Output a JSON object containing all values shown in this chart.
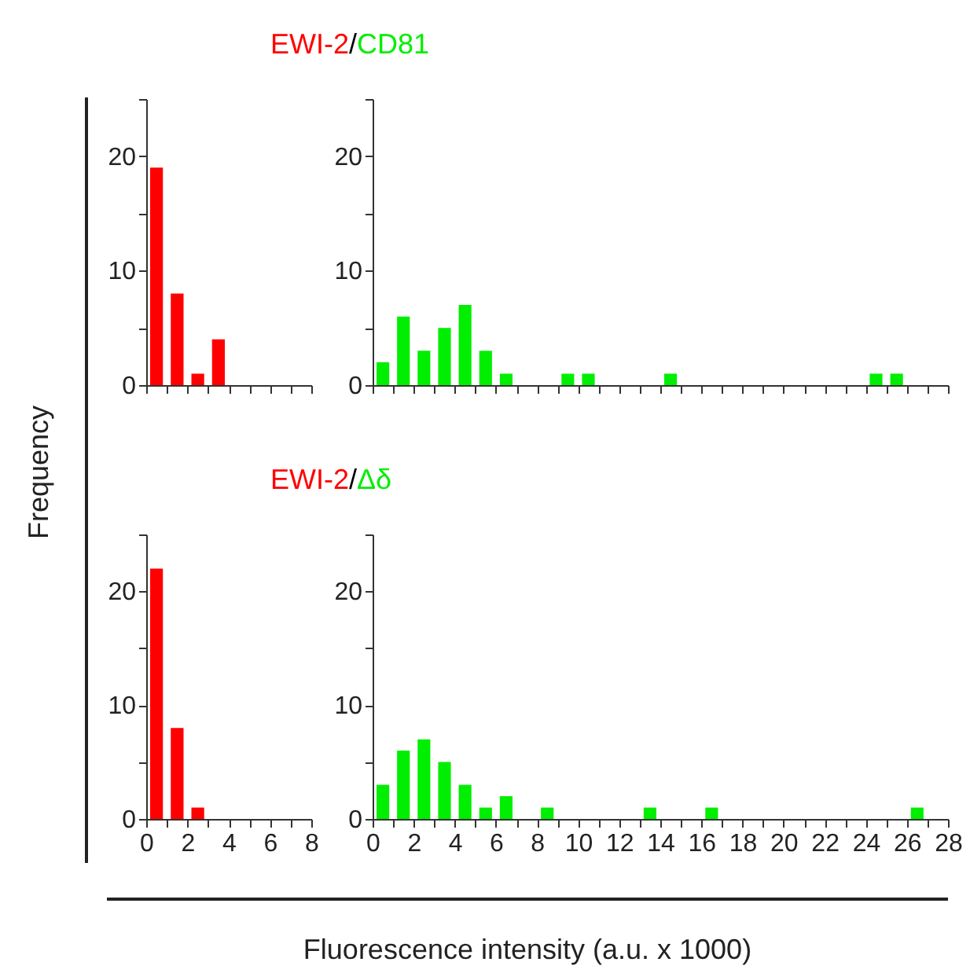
{
  "chart_data": [
    {
      "type": "histogram",
      "title": "EWI-2/CD81",
      "ylabel": "Frequency",
      "color": "#ff0000",
      "bins": [
        0,
        1,
        2,
        3,
        4,
        5,
        6,
        7,
        8
      ],
      "values": [
        19,
        8,
        1,
        4,
        0,
        0,
        0,
        0
      ],
      "xlim": [
        0,
        8
      ],
      "ylim": [
        0,
        25
      ],
      "xticks": [
        0,
        1,
        2,
        3,
        4,
        5,
        6,
        7,
        8
      ],
      "yticks": [
        0,
        {
          "value": 5,
          "label": null
        },
        10,
        {
          "value": 15,
          "label": null
        },
        20,
        {
          "value": 25,
          "label": null
        }
      ],
      "tick_labels": "y"
    },
    {
      "type": "histogram",
      "color": "#00ee00",
      "bins": [
        0,
        1,
        2,
        3,
        4,
        5,
        6,
        7,
        8,
        9,
        10,
        11,
        12,
        13,
        14,
        15,
        16,
        17,
        18,
        19,
        20,
        21,
        22,
        23,
        24,
        25,
        26,
        27,
        28
      ],
      "values": [
        2,
        6,
        3,
        5,
        7,
        3,
        1,
        0,
        0,
        1,
        1,
        0,
        0,
        0,
        1,
        0,
        0,
        0,
        0,
        0,
        0,
        0,
        0,
        0,
        1,
        1,
        0,
        0
      ],
      "xlim": [
        0,
        28
      ],
      "ylim": [
        0,
        25
      ],
      "xticks": [
        0,
        1,
        2,
        3,
        4,
        5,
        6,
        7,
        8,
        9,
        10,
        11,
        12,
        13,
        14,
        15,
        16,
        17,
        18,
        19,
        20,
        21,
        22,
        23,
        24,
        25,
        26,
        27,
        28
      ],
      "yticks": [
        0,
        {
          "value": 5,
          "label": null
        },
        10,
        {
          "value": 15,
          "label": null
        },
        20,
        {
          "value": 25,
          "label": null
        }
      ],
      "tick_labels": "y"
    },
    {
      "type": "histogram",
      "title": "EWI-2/Δδ",
      "color": "#ff0000",
      "bins": [
        0,
        1,
        2,
        3,
        4,
        5,
        6,
        7,
        8
      ],
      "values": [
        22,
        8,
        1,
        0,
        0,
        0,
        0,
        0
      ],
      "xlim": [
        0,
        8
      ],
      "ylim": [
        0,
        25
      ],
      "xticks": [
        0,
        {
          "value": 1,
          "label": null
        },
        2,
        {
          "value": 3,
          "label": null
        },
        4,
        {
          "value": 5,
          "label": null
        },
        6,
        {
          "value": 7,
          "label": null
        },
        8
      ],
      "yticks": [
        0,
        {
          "value": 5,
          "label": null
        },
        10,
        {
          "value": 15,
          "label": null
        },
        20,
        {
          "value": 25,
          "label": null
        }
      ]
    },
    {
      "type": "histogram",
      "xlabel": "Fluorescence intensity (a.u. x 1000)",
      "color": "#00ee00",
      "bins": [
        0,
        1,
        2,
        3,
        4,
        5,
        6,
        7,
        8,
        9,
        10,
        11,
        12,
        13,
        14,
        15,
        16,
        17,
        18,
        19,
        20,
        21,
        22,
        23,
        24,
        25,
        26,
        27,
        28
      ],
      "values": [
        3,
        6,
        7,
        5,
        3,
        1,
        2,
        0,
        1,
        0,
        0,
        0,
        0,
        1,
        0,
        0,
        1,
        0,
        0,
        0,
        0,
        0,
        0,
        0,
        0,
        0,
        1,
        0
      ],
      "xlim": [
        0,
        28
      ],
      "ylim": [
        0,
        25
      ],
      "yticks": [
        0,
        {
          "value": 5,
          "label": null
        },
        10,
        {
          "value": 15,
          "label": null
        },
        20,
        {
          "value": 25,
          "label": null
        }
      ],
      "xticks": [
        0,
        {
          "value": 1,
          "label": null
        },
        2,
        {
          "value": 3,
          "label": null
        },
        4,
        {
          "value": 5,
          "label": null
        },
        6,
        {
          "value": 7,
          "label": null
        },
        8,
        {
          "value": 9,
          "label": null
        },
        10,
        {
          "value": 11,
          "label": null
        },
        12,
        {
          "value": 13,
          "label": null
        },
        14,
        {
          "value": 15,
          "label": null
        },
        16,
        {
          "value": 17,
          "label": null
        },
        18,
        {
          "value": 19,
          "label": null
        },
        20,
        {
          "value": 21,
          "label": null
        },
        22,
        {
          "value": 23,
          "label": null
        },
        24,
        {
          "value": 25,
          "label": null
        },
        26,
        {
          "value": 27,
          "label": null
        },
        28
      ]
    }
  ]
}
